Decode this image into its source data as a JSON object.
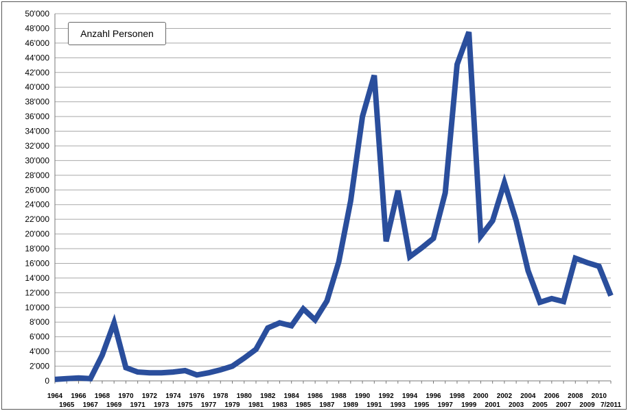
{
  "chart_data": {
    "type": "line",
    "legend": "Anzahl Personen",
    "colors": {
      "line": "#2a4e9c",
      "grid": "#a8a8a8",
      "axis": "#777777"
    },
    "ylim": [
      0,
      50000
    ],
    "yticks": [
      "0",
      "2'000",
      "4'000",
      "6'000",
      "8'000",
      "10'000",
      "12'000",
      "14'000",
      "16'000",
      "18'000",
      "20'000",
      "22'000",
      "24'000",
      "26'000",
      "28'000",
      "30'000",
      "32'000",
      "34'000",
      "36'000",
      "38'000",
      "40'000",
      "42'000",
      "44'000",
      "46'000",
      "48'000",
      "50'000"
    ],
    "categories": [
      "1964",
      "1965",
      "1966",
      "1967",
      "1968",
      "1969",
      "1970",
      "1971",
      "1972",
      "1973",
      "1974",
      "1975",
      "1976",
      "1977",
      "1978",
      "1979",
      "1980",
      "1981",
      "1982",
      "1983",
      "1984",
      "1985",
      "1986",
      "1987",
      "1988",
      "1989",
      "1990",
      "1991",
      "1992",
      "1993",
      "1994",
      "1995",
      "1996",
      "1997",
      "1998",
      "1999",
      "2000",
      "2001",
      "2002",
      "2003",
      "2004",
      "2005",
      "2006",
      "2007",
      "2008",
      "2009",
      "2010",
      "7/2011"
    ],
    "series": [
      {
        "name": "Anzahl Personen",
        "values": [
          200,
          300,
          400,
          300,
          3500,
          7900,
          1800,
          1200,
          1100,
          1100,
          1200,
          1400,
          800,
          1100,
          1500,
          2000,
          3100,
          4300,
          7200,
          7900,
          7500,
          9800,
          8300,
          10900,
          16200,
          24500,
          36000,
          41600,
          19000,
          25900,
          16900,
          18100,
          19400,
          25600,
          43100,
          47500,
          19700,
          21800,
          27000,
          21800,
          15000,
          10700,
          11200,
          10800,
          16700,
          16100,
          15600,
          11600
        ]
      }
    ]
  }
}
